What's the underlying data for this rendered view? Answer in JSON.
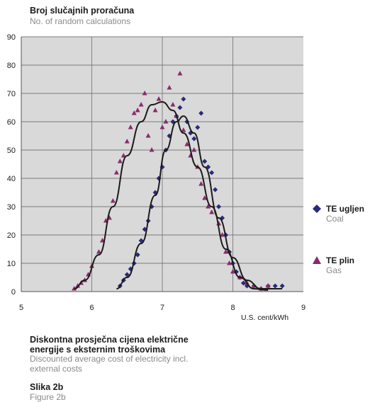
{
  "labels": {
    "y_title_hr": "Broj slučajnih proračuna",
    "y_title_en": "No. of random calculations",
    "x_unit": "U.S. cent/kWh",
    "x_caption_hr": "Diskontna prosječna cijena električne energije s eksternim troškovima",
    "x_caption_en": "Discounted average cost of electricity incl. external costs",
    "figure_hr": "Slika 2b",
    "figure_en": "Figure 2b"
  },
  "legend": [
    {
      "label_hr": "TE ugljen",
      "label_en": "Coal",
      "marker": "diamond",
      "color": "#2a2a7a"
    },
    {
      "label_hr": "TE plin",
      "label_en": "Gas",
      "marker": "triangle",
      "color": "#8a2a6a"
    }
  ],
  "colors": {
    "plot_bg": "#d9d9d9",
    "grid": "#7a7a7a",
    "curve": "#1a1a1a",
    "coal": "#2a2a7a",
    "gas": "#8a2a6a"
  },
  "chart_data": {
    "type": "scatter",
    "title": "",
    "xlabel": "U.S. cent/kWh",
    "ylabel": "Broj slučajnih proračuna",
    "xlim": [
      5,
      9
    ],
    "ylim": [
      0,
      90
    ],
    "xticks": [
      5,
      6,
      7,
      8,
      9
    ],
    "yticks": [
      0,
      10,
      20,
      30,
      40,
      50,
      60,
      70,
      80,
      90
    ],
    "grid": true,
    "legend_position": "right",
    "series": [
      {
        "name": "TE ugljen",
        "marker": "diamond",
        "points": [
          [
            6.4,
            2
          ],
          [
            6.45,
            4
          ],
          [
            6.5,
            6
          ],
          [
            6.55,
            8
          ],
          [
            6.6,
            10
          ],
          [
            6.65,
            13
          ],
          [
            6.7,
            18
          ],
          [
            6.75,
            22
          ],
          [
            6.8,
            25
          ],
          [
            6.85,
            30
          ],
          [
            6.9,
            35
          ],
          [
            6.95,
            40
          ],
          [
            7.0,
            44
          ],
          [
            7.05,
            50
          ],
          [
            7.1,
            55
          ],
          [
            7.15,
            60
          ],
          [
            7.2,
            62
          ],
          [
            7.25,
            65
          ],
          [
            7.3,
            68
          ],
          [
            7.35,
            60
          ],
          [
            7.4,
            56
          ],
          [
            7.45,
            54
          ],
          [
            7.5,
            58
          ],
          [
            7.55,
            63
          ],
          [
            7.6,
            46
          ],
          [
            7.65,
            44
          ],
          [
            7.7,
            42
          ],
          [
            7.75,
            36
          ],
          [
            7.8,
            30
          ],
          [
            7.85,
            26
          ],
          [
            7.9,
            20
          ],
          [
            7.95,
            14
          ],
          [
            8.0,
            10
          ],
          [
            8.05,
            7
          ],
          [
            8.1,
            5
          ],
          [
            8.15,
            3
          ],
          [
            8.2,
            2
          ],
          [
            8.3,
            2
          ],
          [
            8.4,
            1
          ],
          [
            8.5,
            2
          ],
          [
            8.6,
            2
          ],
          [
            8.7,
            2
          ]
        ],
        "fit_curve": [
          [
            6.35,
            1
          ],
          [
            6.5,
            5
          ],
          [
            6.7,
            17
          ],
          [
            6.9,
            34
          ],
          [
            7.05,
            50
          ],
          [
            7.2,
            60
          ],
          [
            7.3,
            62
          ],
          [
            7.45,
            56
          ],
          [
            7.6,
            44
          ],
          [
            7.8,
            26
          ],
          [
            8.0,
            12
          ],
          [
            8.2,
            4
          ],
          [
            8.4,
            1
          ],
          [
            8.7,
            1
          ]
        ]
      },
      {
        "name": "TE plin",
        "marker": "triangle",
        "points": [
          [
            5.75,
            1
          ],
          [
            5.8,
            2
          ],
          [
            5.85,
            3
          ],
          [
            5.9,
            4
          ],
          [
            5.95,
            6
          ],
          [
            6.0,
            9
          ],
          [
            6.1,
            14
          ],
          [
            6.15,
            18
          ],
          [
            6.2,
            25
          ],
          [
            6.25,
            26
          ],
          [
            6.3,
            32
          ],
          [
            6.35,
            42
          ],
          [
            6.4,
            46
          ],
          [
            6.45,
            48
          ],
          [
            6.5,
            53
          ],
          [
            6.55,
            58
          ],
          [
            6.6,
            63
          ],
          [
            6.65,
            64
          ],
          [
            6.7,
            66
          ],
          [
            6.75,
            70
          ],
          [
            6.8,
            55
          ],
          [
            6.85,
            50
          ],
          [
            6.9,
            64
          ],
          [
            6.95,
            68
          ],
          [
            7.0,
            58
          ],
          [
            7.05,
            60
          ],
          [
            7.1,
            72
          ],
          [
            7.15,
            66
          ],
          [
            7.2,
            62
          ],
          [
            7.25,
            77
          ],
          [
            7.3,
            57
          ],
          [
            7.35,
            52
          ],
          [
            7.4,
            48
          ],
          [
            7.45,
            50
          ],
          [
            7.5,
            44
          ],
          [
            7.55,
            38
          ],
          [
            7.6,
            33
          ],
          [
            7.65,
            30
          ],
          [
            7.7,
            28
          ],
          [
            7.8,
            24
          ],
          [
            7.85,
            20
          ],
          [
            7.9,
            14
          ],
          [
            7.95,
            10
          ],
          [
            8.0,
            7
          ],
          [
            8.1,
            5
          ],
          [
            8.2,
            3
          ],
          [
            8.3,
            2
          ],
          [
            8.4,
            1
          ],
          [
            8.5,
            2
          ]
        ],
        "fit_curve": [
          [
            5.75,
            1
          ],
          [
            5.9,
            4
          ],
          [
            6.1,
            13
          ],
          [
            6.3,
            30
          ],
          [
            6.5,
            48
          ],
          [
            6.7,
            60
          ],
          [
            6.85,
            66
          ],
          [
            7.0,
            67
          ],
          [
            7.15,
            64
          ],
          [
            7.3,
            56
          ],
          [
            7.5,
            44
          ],
          [
            7.7,
            30
          ],
          [
            7.9,
            15
          ],
          [
            8.1,
            5
          ],
          [
            8.3,
            1
          ],
          [
            8.5,
            0.5
          ]
        ]
      }
    ]
  }
}
